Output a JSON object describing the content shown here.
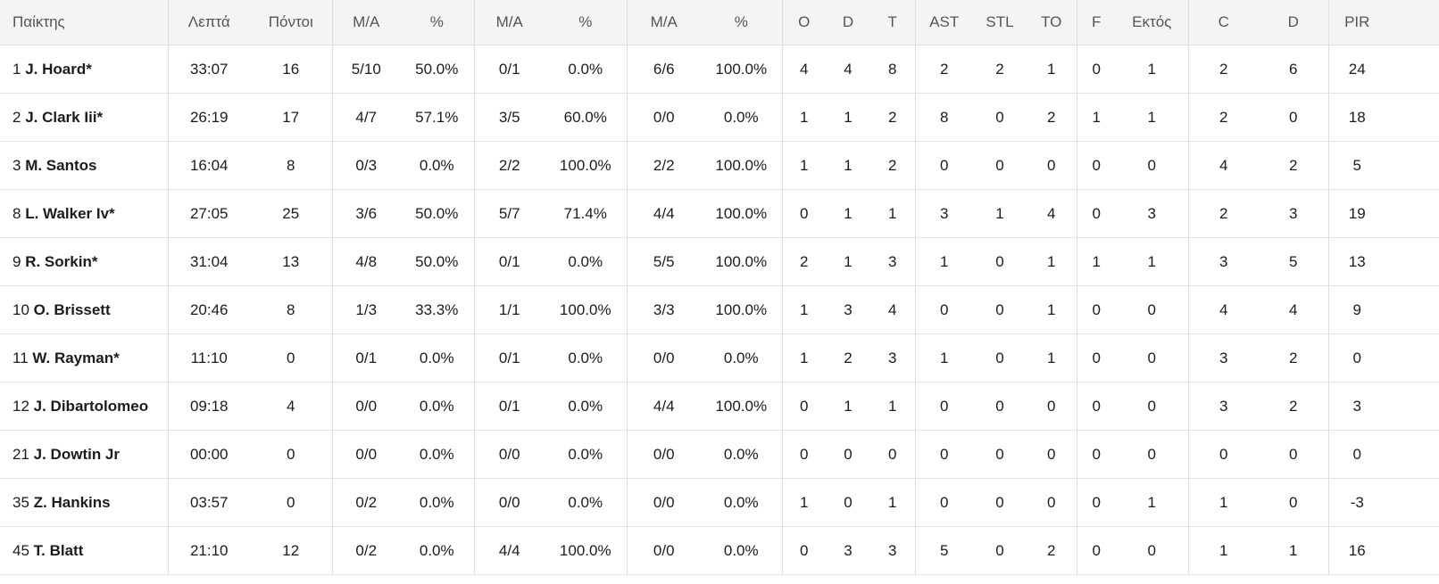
{
  "header": [
    "Παίκτης",
    "Λεπτά",
    "Πόντοι",
    "M/A",
    "%",
    "M/A",
    "%",
    "M/A",
    "%",
    "O",
    "D",
    "T",
    "AST",
    "STL",
    "TO",
    "F",
    "Εκτός",
    "C",
    "D",
    "PIR"
  ],
  "rows": [
    {
      "number": "1",
      "name": "J. Hoard*",
      "stats": [
        "33:07",
        "16",
        "5/10",
        "50.0%",
        "0/1",
        "0.0%",
        "6/6",
        "100.0%",
        "4",
        "4",
        "8",
        "2",
        "2",
        "1",
        "0",
        "1",
        "2",
        "6",
        "24"
      ]
    },
    {
      "number": "2",
      "name": "J. Clark Iii*",
      "stats": [
        "26:19",
        "17",
        "4/7",
        "57.1%",
        "3/5",
        "60.0%",
        "0/0",
        "0.0%",
        "1",
        "1",
        "2",
        "8",
        "0",
        "2",
        "1",
        "1",
        "2",
        "0",
        "18"
      ]
    },
    {
      "number": "3",
      "name": "M. Santos",
      "stats": [
        "16:04",
        "8",
        "0/3",
        "0.0%",
        "2/2",
        "100.0%",
        "2/2",
        "100.0%",
        "1",
        "1",
        "2",
        "0",
        "0",
        "0",
        "0",
        "0",
        "4",
        "2",
        "5"
      ]
    },
    {
      "number": "8",
      "name": "L. Walker Iv*",
      "stats": [
        "27:05",
        "25",
        "3/6",
        "50.0%",
        "5/7",
        "71.4%",
        "4/4",
        "100.0%",
        "0",
        "1",
        "1",
        "3",
        "1",
        "4",
        "0",
        "3",
        "2",
        "3",
        "19"
      ]
    },
    {
      "number": "9",
      "name": "R. Sorkin*",
      "stats": [
        "31:04",
        "13",
        "4/8",
        "50.0%",
        "0/1",
        "0.0%",
        "5/5",
        "100.0%",
        "2",
        "1",
        "3",
        "1",
        "0",
        "1",
        "1",
        "1",
        "3",
        "5",
        "13"
      ]
    },
    {
      "number": "10",
      "name": "O. Brissett",
      "stats": [
        "20:46",
        "8",
        "1/3",
        "33.3%",
        "1/1",
        "100.0%",
        "3/3",
        "100.0%",
        "1",
        "3",
        "4",
        "0",
        "0",
        "1",
        "0",
        "0",
        "4",
        "4",
        "9"
      ]
    },
    {
      "number": "11",
      "name": "W. Rayman*",
      "stats": [
        "11:10",
        "0",
        "0/1",
        "0.0%",
        "0/1",
        "0.0%",
        "0/0",
        "0.0%",
        "1",
        "2",
        "3",
        "1",
        "0",
        "1",
        "0",
        "0",
        "3",
        "2",
        "0"
      ]
    },
    {
      "number": "12",
      "name": "J. Dibartolomeo",
      "stats": [
        "09:18",
        "4",
        "0/0",
        "0.0%",
        "0/1",
        "0.0%",
        "4/4",
        "100.0%",
        "0",
        "1",
        "1",
        "0",
        "0",
        "0",
        "0",
        "0",
        "3",
        "2",
        "3"
      ]
    },
    {
      "number": "21",
      "name": "J. Dowtin Jr",
      "stats": [
        "00:00",
        "0",
        "0/0",
        "0.0%",
        "0/0",
        "0.0%",
        "0/0",
        "0.0%",
        "0",
        "0",
        "0",
        "0",
        "0",
        "0",
        "0",
        "0",
        "0",
        "0",
        "0"
      ]
    },
    {
      "number": "35",
      "name": "Z. Hankins",
      "stats": [
        "03:57",
        "0",
        "0/2",
        "0.0%",
        "0/0",
        "0.0%",
        "0/0",
        "0.0%",
        "1",
        "0",
        "1",
        "0",
        "0",
        "0",
        "0",
        "1",
        "1",
        "0",
        "-3"
      ]
    },
    {
      "number": "45",
      "name": "T. Blatt",
      "stats": [
        "21:10",
        "12",
        "0/2",
        "0.0%",
        "4/4",
        "100.0%",
        "0/0",
        "0.0%",
        "0",
        "3",
        "3",
        "5",
        "0",
        "2",
        "0",
        "0",
        "1",
        "1",
        "16"
      ]
    }
  ]
}
